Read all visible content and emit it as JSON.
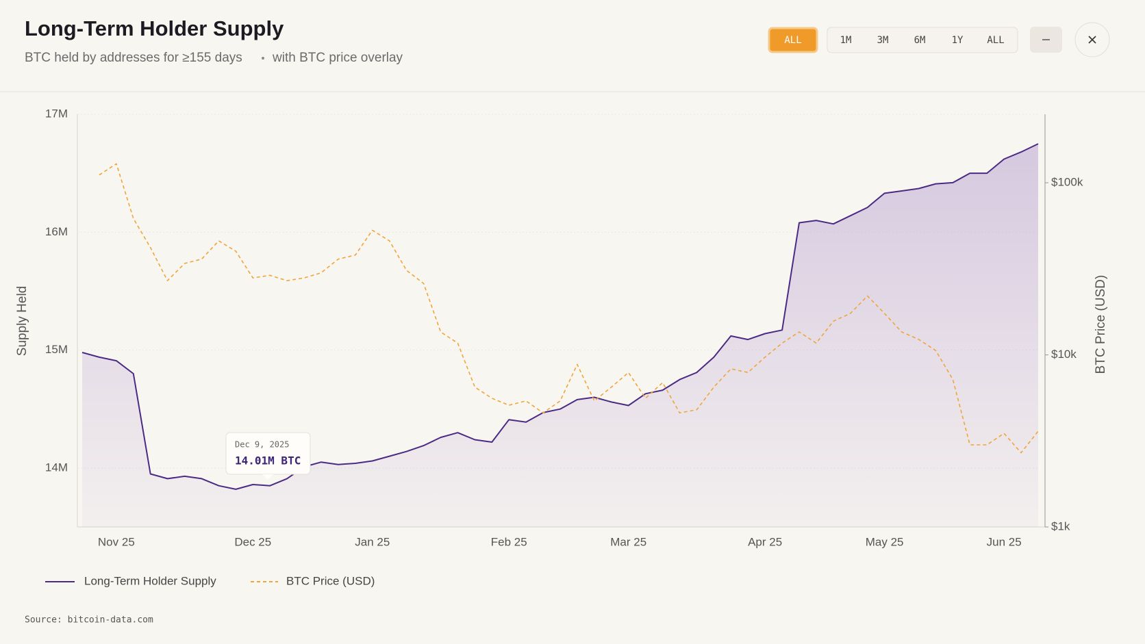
{
  "chart_data": {
    "type": "line",
    "title": "Long-Term Holder Supply",
    "subtitle": [
      "BTC held by addresses for ≥155 days",
      "with BTC price overlay"
    ],
    "y_label": "Supply Held",
    "y2_label": "BTC Price (USD)",
    "source": "Source: bitcoin-data.com",
    "categories": [
      null,
      null,
      "Nov 25",
      null,
      null,
      null,
      null,
      null,
      null,
      null,
      "Dec 25",
      null,
      null,
      null,
      null,
      null,
      null,
      "Jan 25",
      null,
      null,
      null,
      null,
      null,
      null,
      null,
      "Feb 25",
      null,
      null,
      null,
      null,
      null,
      null,
      "Mar 25",
      null,
      null,
      null,
      null,
      null,
      null,
      null,
      "Apr 25",
      null,
      null,
      null,
      null,
      null,
      null,
      "May 25",
      null,
      null,
      null,
      null,
      null,
      null,
      "Jun 25",
      null,
      null
    ],
    "series": [
      {
        "name": "Long-Term Holder Supply",
        "color": "#4a2a84",
        "area": true,
        "values": [
          14.98,
          14.94,
          14.91,
          14.8,
          13.95,
          13.91,
          13.93,
          13.91,
          13.85,
          13.82,
          13.86,
          13.85,
          13.91,
          14.01,
          14.05,
          14.03,
          14.04,
          14.06,
          14.1,
          14.14,
          14.19,
          14.26,
          14.3,
          14.24,
          14.22,
          14.41,
          14.39,
          14.47,
          14.5,
          14.58,
          14.6,
          14.56,
          14.53,
          14.63,
          14.66,
          14.75,
          14.81,
          14.94,
          15.12,
          15.09,
          15.14,
          15.17,
          16.08,
          16.1,
          16.07,
          16.14,
          16.21,
          16.33,
          16.35,
          16.37,
          16.41,
          16.42,
          16.5,
          16.5,
          16.62,
          16.68,
          16.75
        ]
      },
      {
        "name": "BTC Price (USD)",
        "color": "#f0a43a",
        "axis": "y2",
        "dashed": true,
        "values": [
          null,
          111000,
          129000,
          62000,
          42000,
          27000,
          34000,
          36000,
          46000,
          40000,
          28000,
          29000,
          27000,
          28000,
          30000,
          36000,
          38000,
          53000,
          46000,
          31000,
          26000,
          13600,
          11700,
          6500,
          5600,
          5100,
          5400,
          4600,
          5400,
          8800,
          5400,
          6500,
          7900,
          5600,
          6900,
          4600,
          4800,
          6500,
          8300,
          7900,
          9700,
          11700,
          13600,
          11700,
          15700,
          17400,
          22000,
          17400,
          13600,
          12300,
          10600,
          7200,
          3000,
          3000,
          3500,
          2700,
          3600
        ]
      }
    ],
    "ylim": [
      13.5,
      17
    ],
    "yticks": [
      {
        "value": 14,
        "label": "14M"
      },
      {
        "value": 15,
        "label": "15M"
      },
      {
        "value": 16,
        "label": "16M"
      },
      {
        "value": 17,
        "label": "17M"
      }
    ],
    "y2lim": [
      1000,
      250000
    ],
    "y2scale": "log",
    "y2ticks": [
      {
        "value": 1000,
        "label": "$1k"
      },
      {
        "value": 10000,
        "label": "$10k"
      },
      {
        "value": 100000,
        "label": "$100k"
      }
    ],
    "grid": true,
    "tooltip": {
      "title": "Dec 9, 2025",
      "text": "14.01M BTC"
    }
  },
  "controls": {
    "active": "ALL",
    "ranges": [
      "1M",
      "3M",
      "6M",
      "1Y",
      "ALL"
    ]
  }
}
